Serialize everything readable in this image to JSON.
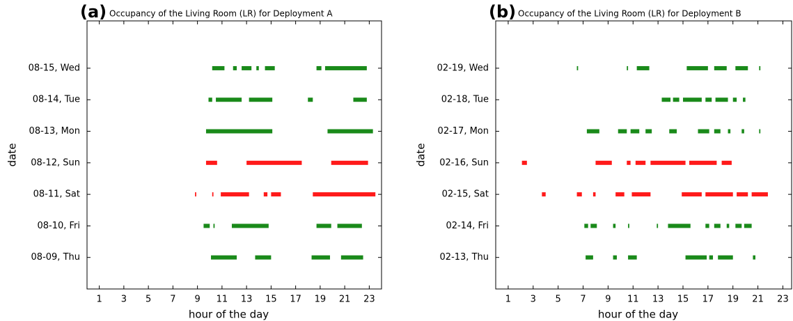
{
  "chart_data": [
    {
      "type": "timeline",
      "panel_label": "(a)",
      "title": "Occupancy of the Living Room (LR) for Deployment A",
      "xlabel": "hour of the day",
      "ylabel": "date",
      "xlim": [
        0,
        24
      ],
      "xticks": [
        1,
        3,
        5,
        7,
        9,
        11,
        13,
        15,
        17,
        19,
        21,
        23
      ],
      "ylim": [
        -1,
        7.5
      ],
      "categories": [
        "08-09, Thu",
        "08-10, Fri",
        "08-11, Sat",
        "08-12, Sun",
        "08-13, Mon",
        "08-14, Tue",
        "08-15, Wed"
      ],
      "colors": [
        "#1a8a1a",
        "#1a8a1a",
        "#ff1a1a",
        "#ff1a1a",
        "#1a8a1a",
        "#1a8a1a",
        "#1a8a1a"
      ],
      "intervals": [
        [
          [
            10.1,
            12.2
          ],
          [
            13.7,
            15.0
          ],
          [
            18.3,
            19.8
          ],
          [
            20.7,
            22.5
          ]
        ],
        [
          [
            9.5,
            10.0
          ],
          [
            10.3,
            10.4
          ],
          [
            11.8,
            14.8
          ],
          [
            18.7,
            19.9
          ],
          [
            20.4,
            22.4
          ]
        ],
        [
          [
            8.8,
            8.9
          ],
          [
            10.2,
            10.3
          ],
          [
            10.9,
            13.2
          ],
          [
            14.4,
            14.7
          ],
          [
            15.0,
            15.8
          ],
          [
            18.4,
            23.5
          ]
        ],
        [
          [
            9.7,
            10.6
          ],
          [
            13.0,
            17.5
          ],
          [
            19.9,
            22.9
          ]
        ],
        [
          [
            9.7,
            15.1
          ],
          [
            19.6,
            23.3
          ]
        ],
        [
          [
            9.9,
            10.2
          ],
          [
            10.5,
            12.6
          ],
          [
            13.2,
            15.1
          ],
          [
            18.0,
            18.4
          ],
          [
            21.7,
            22.8
          ]
        ],
        [
          [
            10.2,
            11.2
          ],
          [
            11.9,
            12.2
          ],
          [
            12.6,
            13.4
          ],
          [
            13.8,
            14.0
          ],
          [
            14.5,
            15.3
          ],
          [
            18.7,
            19.1
          ],
          [
            19.4,
            22.8
          ]
        ]
      ]
    },
    {
      "type": "timeline",
      "panel_label": "(b)",
      "title": "Occupancy of the Living Room (LR) for Deployment B",
      "xlabel": "hour of the day",
      "ylabel": "date",
      "xlim": [
        0,
        23.7
      ],
      "xticks": [
        1,
        3,
        5,
        7,
        9,
        11,
        13,
        15,
        17,
        19,
        21,
        23
      ],
      "ylim": [
        -1,
        7.5
      ],
      "categories": [
        "02-13, Thu",
        "02-14, Fri",
        "02-15, Sat",
        "02-16, Sun",
        "02-17, Mon",
        "02-18, Tue",
        "02-19, Wed"
      ],
      "colors": [
        "#1a8a1a",
        "#1a8a1a",
        "#ff1a1a",
        "#ff1a1a",
        "#1a8a1a",
        "#1a8a1a",
        "#1a8a1a"
      ],
      "intervals": [
        [
          [
            7.2,
            7.8
          ],
          [
            9.4,
            9.7
          ],
          [
            10.6,
            11.3
          ],
          [
            15.2,
            16.9
          ],
          [
            17.1,
            17.4
          ],
          [
            17.8,
            19.0
          ],
          [
            20.6,
            20.8
          ]
        ],
        [
          [
            7.1,
            7.4
          ],
          [
            7.6,
            8.1
          ],
          [
            9.4,
            9.6
          ],
          [
            10.6,
            10.7
          ],
          [
            12.9,
            13.0
          ],
          [
            13.8,
            15.6
          ],
          [
            16.8,
            17.1
          ],
          [
            17.5,
            18.0
          ],
          [
            18.5,
            18.7
          ],
          [
            19.2,
            19.7
          ],
          [
            19.9,
            20.5
          ]
        ],
        [
          [
            3.7,
            4.0
          ],
          [
            6.5,
            6.9
          ],
          [
            7.8,
            8.0
          ],
          [
            9.6,
            10.3
          ],
          [
            10.9,
            12.4
          ],
          [
            14.9,
            16.5
          ],
          [
            16.8,
            19.0
          ],
          [
            19.3,
            20.2
          ],
          [
            20.5,
            21.8
          ]
        ],
        [
          [
            2.1,
            2.5
          ],
          [
            8.0,
            9.3
          ],
          [
            10.5,
            10.8
          ],
          [
            11.2,
            12.0
          ],
          [
            12.4,
            15.2
          ],
          [
            15.5,
            17.7
          ],
          [
            18.1,
            18.9
          ]
        ],
        [
          [
            7.3,
            8.3
          ],
          [
            9.8,
            10.5
          ],
          [
            10.8,
            11.5
          ],
          [
            12.0,
            12.5
          ],
          [
            13.9,
            14.5
          ],
          [
            16.2,
            17.1
          ],
          [
            17.5,
            18.0
          ],
          [
            18.6,
            18.8
          ],
          [
            19.7,
            19.9
          ],
          [
            21.1,
            21.2
          ]
        ],
        [
          [
            13.3,
            14.0
          ],
          [
            14.2,
            14.7
          ],
          [
            15.0,
            16.5
          ],
          [
            16.8,
            17.3
          ],
          [
            17.6,
            18.6
          ],
          [
            19.0,
            19.3
          ],
          [
            19.8,
            20.0
          ]
        ],
        [
          [
            6.5,
            6.6
          ],
          [
            10.5,
            10.6
          ],
          [
            11.3,
            12.3
          ],
          [
            15.3,
            17.0
          ],
          [
            17.5,
            18.5
          ],
          [
            19.2,
            20.2
          ],
          [
            21.1,
            21.2
          ]
        ]
      ]
    }
  ]
}
